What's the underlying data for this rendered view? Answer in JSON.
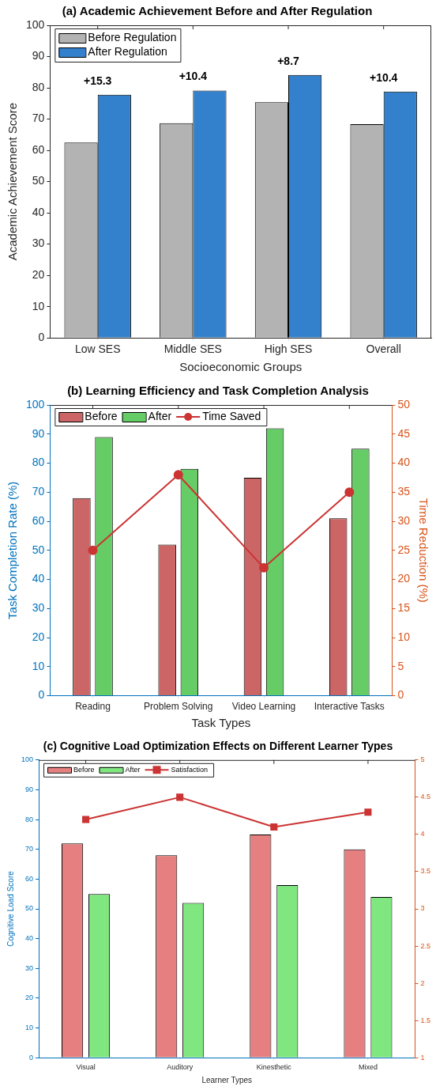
{
  "chart_data": [
    {
      "type": "bar",
      "title": "(a) Academic Achievement Before and After Regulation",
      "xlabel": "Socioeconomic Groups",
      "ylabel": "Academic Achievement Score",
      "categories": [
        "Low SES",
        "Middle SES",
        "High SES",
        "Overall"
      ],
      "series": [
        {
          "name": "Before Regulation",
          "color": "#b3b3b3",
          "values": [
            62.5,
            68.7,
            75.4,
            68.4
          ]
        },
        {
          "name": "After Regulation",
          "color": "#3380cc",
          "values": [
            77.8,
            79.1,
            84.1,
            78.8
          ]
        }
      ],
      "ylim": [
        0,
        100
      ],
      "yticks": [
        0,
        10,
        20,
        30,
        40,
        50,
        60,
        70,
        80,
        90,
        100
      ],
      "annotations": [
        {
          "text": "+15.3",
          "x": "Low SES",
          "y": 77.8
        },
        {
          "text": "+10.4",
          "x": "Middle SES",
          "y": 79.1
        },
        {
          "text": "+8.7",
          "x": "High SES",
          "y": 84.1
        },
        {
          "text": "+10.4",
          "x": "Overall",
          "y": 78.8
        }
      ],
      "legend": "top left",
      "grid": false
    },
    {
      "type": "bar",
      "title": "(b) Learning Efficiency and Task Completion Analysis",
      "xlabel": "Task Types",
      "ylabel": "Task Completion Rate (%)",
      "y2label": "Time Reduction (%)",
      "categories": [
        "Reading",
        "Problem Solving",
        "Video Learning",
        "Interactive Tasks"
      ],
      "series": [
        {
          "name": "Before",
          "color": "#cc6666",
          "values": [
            68,
            52,
            75,
            61
          ]
        },
        {
          "name": "After",
          "color": "#66cc66",
          "values": [
            89,
            78,
            92,
            85
          ]
        },
        {
          "name": "Time Saved",
          "type": "line",
          "axis": "y2",
          "color": "#cc3333",
          "marker": "circle",
          "values": [
            25,
            38,
            22,
            35
          ]
        }
      ],
      "ylim": [
        0,
        100
      ],
      "yticks": [
        0,
        10,
        20,
        30,
        40,
        50,
        60,
        70,
        80,
        90,
        100
      ],
      "y2lim": [
        0,
        50
      ],
      "y2ticks": [
        0,
        5,
        10,
        15,
        20,
        25,
        30,
        35,
        40,
        45,
        50
      ],
      "legend": "top left",
      "grid": false
    },
    {
      "type": "bar",
      "title": "(c) Cognitive Load Optimization Effects on Different Learner Types",
      "xlabel": "Learner Types",
      "ylabel": "Cognitive Load Score",
      "categories": [
        "Visual",
        "Auditory",
        "Kinesthetic",
        "Mixed"
      ],
      "series": [
        {
          "name": "Before",
          "color": "#e68080",
          "values": [
            72,
            68,
            75,
            70
          ]
        },
        {
          "name": "After",
          "color": "#80e680",
          "values": [
            55,
            52,
            58,
            54
          ]
        },
        {
          "name": "Satisfaction",
          "type": "line",
          "axis": "y2",
          "color": "#cc3333",
          "marker": "square",
          "values": [
            4.2,
            4.5,
            4.1,
            4.3
          ]
        }
      ],
      "ylim": [
        0,
        100
      ],
      "yticks": [
        0,
        10,
        20,
        30,
        40,
        50,
        60,
        70,
        80,
        90,
        100
      ],
      "y2lim": [
        1,
        5
      ],
      "y2ticks": [
        1,
        1.5,
        2,
        2.5,
        3,
        3.5,
        4,
        4.5,
        5
      ],
      "legend": "top left",
      "grid": false
    }
  ]
}
